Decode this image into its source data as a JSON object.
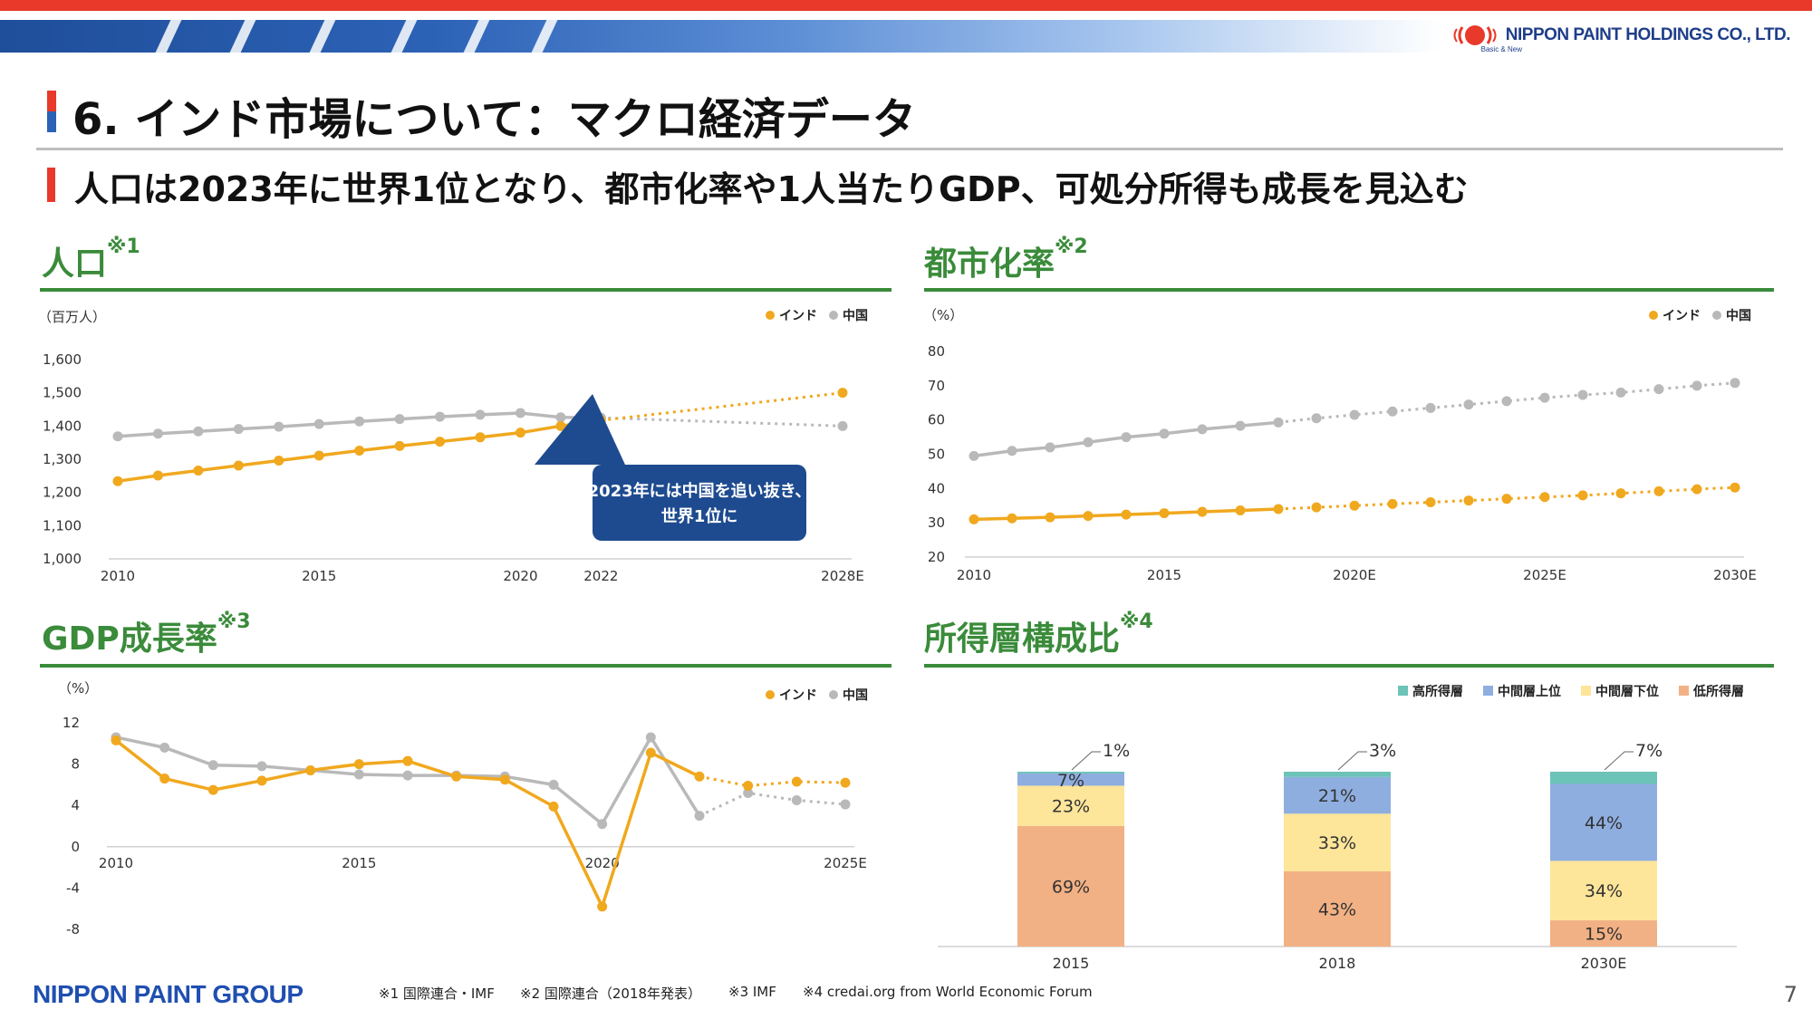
{
  "header": {
    "company": "NIPPON PAINT HOLDINGS CO., LTD.",
    "tagline": "Basic & New",
    "title": "6. インド市場について：マクロ経済データ",
    "subtitle": "人口は2023年に世界1位となり、都市化率や1人当たりGDP、可処分所得も成長を見込む"
  },
  "colors": {
    "india": "#f0a81e",
    "china": "#b9b9b9",
    "section_green": "#3a8b3a",
    "callout": "#1e4b8f",
    "high": "#6cc3b8",
    "mid_upper": "#8faee0",
    "mid_lower": "#fde59a",
    "low": "#f2b184"
  },
  "sections": {
    "population": {
      "title": "人口",
      "note": "※1"
    },
    "urbanization": {
      "title": "都市化率",
      "note": "※2"
    },
    "gdp": {
      "title": "GDP成長率",
      "note": "※3"
    },
    "income": {
      "title": "所得層構成比",
      "note": "※4"
    }
  },
  "callout": {
    "line1": "2023年には中国を追い抜き、",
    "line2": "世界1位に"
  },
  "chart_data": [
    {
      "type": "line",
      "id": "population",
      "unit": "（百万人）",
      "ylim": [
        1000,
        1600
      ],
      "yticks": [
        1000,
        1100,
        1200,
        1300,
        1400,
        1500,
        1600
      ],
      "ytick_labels": [
        "1,000",
        "1,100",
        "1,200",
        "1,300",
        "1,400",
        "1,500",
        "1,600"
      ],
      "xlabels": [
        {
          "x": 2010,
          "label": "2010"
        },
        {
          "x": 2015,
          "label": "2015"
        },
        {
          "x": 2020,
          "label": "2020"
        },
        {
          "x": 2022,
          "label": "2022"
        },
        {
          "x": 2028,
          "label": "2028E"
        }
      ],
      "xlim": [
        2010,
        2028
      ],
      "series": [
        {
          "name": "インド",
          "actual": [
            [
              2010,
              1234
            ],
            [
              2011,
              1251
            ],
            [
              2012,
              1266
            ],
            [
              2013,
              1281
            ],
            [
              2014,
              1296
            ],
            [
              2015,
              1311
            ],
            [
              2016,
              1326
            ],
            [
              2017,
              1340
            ],
            [
              2018,
              1353
            ],
            [
              2019,
              1366
            ],
            [
              2020,
              1380
            ],
            [
              2021,
              1400
            ],
            [
              2022,
              1417
            ]
          ],
          "forecast": [
            [
              2022,
              1417
            ],
            [
              2028,
              1500
            ]
          ]
        },
        {
          "name": "中国",
          "actual": [
            [
              2010,
              1369
            ],
            [
              2011,
              1377
            ],
            [
              2012,
              1384
            ],
            [
              2013,
              1391
            ],
            [
              2014,
              1398
            ],
            [
              2015,
              1406
            ],
            [
              2016,
              1414
            ],
            [
              2017,
              1421
            ],
            [
              2018,
              1428
            ],
            [
              2019,
              1434
            ],
            [
              2020,
              1439
            ],
            [
              2021,
              1426
            ],
            [
              2022,
              1425
            ]
          ],
          "forecast": [
            [
              2022,
              1425
            ],
            [
              2028,
              1400
            ]
          ]
        }
      ]
    },
    {
      "type": "line",
      "id": "urbanization",
      "unit": "（%）",
      "ylim": [
        20,
        80
      ],
      "yticks": [
        20,
        30,
        40,
        50,
        60,
        70,
        80
      ],
      "ytick_labels": [
        "20",
        "30",
        "40",
        "50",
        "60",
        "70",
        "80"
      ],
      "xlabels": [
        {
          "x": 2010,
          "label": "2010"
        },
        {
          "x": 2015,
          "label": "2015"
        },
        {
          "x": 2020,
          "label": "2020E"
        },
        {
          "x": 2025,
          "label": "2025E"
        },
        {
          "x": 2030,
          "label": "2030E"
        }
      ],
      "xlim": [
        2010,
        2030
      ],
      "series": [
        {
          "name": "インド",
          "actual": [
            [
              2010,
              31
            ],
            [
              2011,
              31.3
            ],
            [
              2012,
              31.6
            ],
            [
              2013,
              32
            ],
            [
              2014,
              32.4
            ],
            [
              2015,
              32.8
            ],
            [
              2016,
              33.2
            ],
            [
              2017,
              33.6
            ],
            [
              2018,
              34
            ]
          ],
          "forecast": [
            [
              2018,
              34
            ],
            [
              2019,
              34.5
            ],
            [
              2020,
              35
            ],
            [
              2021,
              35.5
            ],
            [
              2022,
              36
            ],
            [
              2023,
              36.5
            ],
            [
              2024,
              37
            ],
            [
              2025,
              37.5
            ],
            [
              2026,
              38
            ],
            [
              2027,
              38.6
            ],
            [
              2028,
              39.2
            ],
            [
              2029,
              39.8
            ],
            [
              2030,
              40.3
            ]
          ]
        },
        {
          "name": "中国",
          "actual": [
            [
              2010,
              49.5
            ],
            [
              2011,
              51
            ],
            [
              2012,
              52
            ],
            [
              2013,
              53.5
            ],
            [
              2014,
              55
            ],
            [
              2015,
              56
            ],
            [
              2016,
              57.3
            ],
            [
              2017,
              58.3
            ],
            [
              2018,
              59.3
            ]
          ],
          "forecast": [
            [
              2018,
              59.3
            ],
            [
              2019,
              60.5
            ],
            [
              2020,
              61.5
            ],
            [
              2021,
              62.5
            ],
            [
              2022,
              63.5
            ],
            [
              2023,
              64.5
            ],
            [
              2024,
              65.5
            ],
            [
              2025,
              66.5
            ],
            [
              2026,
              67.3
            ],
            [
              2027,
              68
            ],
            [
              2028,
              69
            ],
            [
              2029,
              70
            ],
            [
              2030,
              70.8
            ]
          ]
        }
      ]
    },
    {
      "type": "line",
      "id": "gdp",
      "unit": "（%）",
      "ylim": [
        -8,
        12
      ],
      "yticks": [
        -8,
        -4,
        0,
        4,
        8,
        12
      ],
      "ytick_labels": [
        "-8",
        "-4",
        "0",
        "4",
        "8",
        "12"
      ],
      "xlabels": [
        {
          "x": 2010,
          "label": "2010"
        },
        {
          "x": 2015,
          "label": "2015"
        },
        {
          "x": 2020,
          "label": "2020"
        },
        {
          "x": 2025,
          "label": "2025E"
        }
      ],
      "xlim": [
        2010,
        2025
      ],
      "series": [
        {
          "name": "インド",
          "actual": [
            [
              2010,
              10.3
            ],
            [
              2011,
              6.6
            ],
            [
              2012,
              5.5
            ],
            [
              2013,
              6.4
            ],
            [
              2014,
              7.4
            ],
            [
              2015,
              8
            ],
            [
              2016,
              8.3
            ],
            [
              2017,
              6.8
            ],
            [
              2018,
              6.5
            ],
            [
              2019,
              3.9
            ],
            [
              2020,
              -5.8
            ],
            [
              2021,
              9.1
            ],
            [
              2022,
              6.8
            ]
          ],
          "forecast": [
            [
              2022,
              6.8
            ],
            [
              2023,
              5.9
            ],
            [
              2024,
              6.3
            ],
            [
              2025,
              6.2
            ]
          ]
        },
        {
          "name": "中国",
          "actual": [
            [
              2010,
              10.6
            ],
            [
              2011,
              9.6
            ],
            [
              2012,
              7.9
            ],
            [
              2013,
              7.8
            ],
            [
              2014,
              7.4
            ],
            [
              2015,
              7
            ],
            [
              2016,
              6.9
            ],
            [
              2017,
              6.9
            ],
            [
              2018,
              6.8
            ],
            [
              2019,
              6
            ],
            [
              2020,
              2.2
            ],
            [
              2021,
              10.6
            ],
            [
              2022,
              3
            ]
          ],
          "forecast": [
            [
              2022,
              3
            ],
            [
              2023,
              5.2
            ],
            [
              2024,
              4.5
            ],
            [
              2025,
              4.1
            ]
          ]
        }
      ]
    },
    {
      "type": "bar",
      "id": "income",
      "stacked": true,
      "categories": [
        "2015",
        "2018",
        "2030E"
      ],
      "series": [
        {
          "name": "低所得層",
          "values": [
            69,
            43,
            15
          ],
          "labels": [
            "69%",
            "43%",
            "15%"
          ]
        },
        {
          "name": "中間層下位",
          "values": [
            23,
            33,
            34
          ],
          "labels": [
            "23%",
            "33%",
            "34%"
          ]
        },
        {
          "name": "中間層上位",
          "values": [
            7,
            21,
            44
          ],
          "labels": [
            "7%",
            "21%",
            "44%"
          ]
        },
        {
          "name": "高所得層",
          "values": [
            1,
            3,
            7
          ],
          "labels": [
            "1%",
            "3%",
            "7%"
          ]
        }
      ]
    }
  ],
  "footer": {
    "brand": "NIPPON PAINT GROUP",
    "notes": [
      "※1 国際連合・IMF",
      "※2 国際連合（2018年発表）",
      "※3 IMF",
      "※4 credai.org from World Economic Forum"
    ],
    "page": "7"
  }
}
